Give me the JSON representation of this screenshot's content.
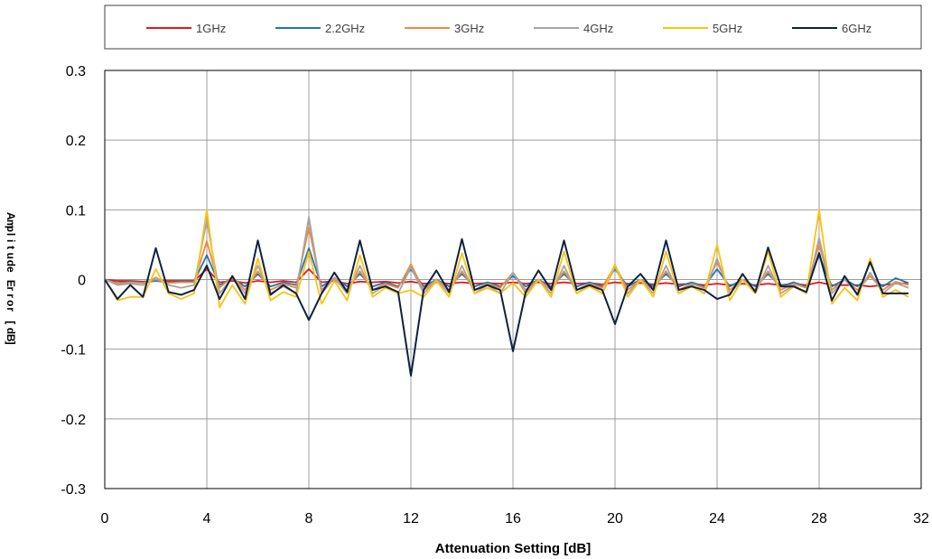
{
  "chart_data": {
    "type": "line",
    "title": "",
    "xlabel": "Attenuation Setting [dB]",
    "ylabel": "Amplitude Error [dB]",
    "xlim": [
      0,
      32
    ],
    "ylim": [
      -0.3,
      0.3
    ],
    "xticks": [
      0,
      4,
      8,
      12,
      16,
      20,
      24,
      28,
      32
    ],
    "yticks": [
      0.3,
      0.2,
      0.1,
      0,
      -0.1,
      -0.2,
      -0.3
    ],
    "ytick_labels": [
      "0.3",
      "0.2",
      "0.1",
      "0",
      "-0.1",
      "-0.2",
      "-0.3"
    ],
    "grid": true,
    "legend_position": "top",
    "x": [
      0,
      0.5,
      1,
      1.5,
      2,
      2.5,
      3,
      3.5,
      4,
      4.5,
      5,
      5.5,
      6,
      6.5,
      7,
      7.5,
      8,
      8.5,
      9,
      9.5,
      10,
      10.5,
      11,
      11.5,
      12,
      12.5,
      13,
      13.5,
      14,
      14.5,
      15,
      15.5,
      16,
      16.5,
      17,
      17.5,
      18,
      18.5,
      19,
      19.5,
      20,
      20.5,
      21,
      21.5,
      22,
      22.5,
      23,
      23.5,
      24,
      24.5,
      25,
      25.5,
      26,
      26.5,
      27,
      27.5,
      28,
      28.5,
      29,
      29.5,
      30,
      30.5,
      31,
      31.5
    ],
    "series": [
      {
        "name": "1GHz",
        "color": "#E8161B",
        "values": [
          0,
          -0.002,
          -0.002,
          -0.003,
          -0.002,
          -0.002,
          -0.002,
          -0.002,
          0.015,
          -0.004,
          -0.002,
          -0.005,
          -0.002,
          -0.004,
          -0.002,
          -0.004,
          0.015,
          -0.004,
          -0.002,
          -0.006,
          -0.003,
          -0.004,
          -0.003,
          -0.005,
          -0.003,
          -0.006,
          -0.004,
          -0.006,
          -0.004,
          -0.006,
          -0.005,
          -0.006,
          -0.004,
          -0.006,
          -0.004,
          -0.006,
          -0.004,
          -0.006,
          -0.005,
          -0.007,
          -0.004,
          -0.006,
          -0.005,
          -0.007,
          -0.005,
          -0.007,
          -0.006,
          -0.008,
          -0.006,
          -0.008,
          -0.006,
          -0.008,
          -0.006,
          -0.008,
          -0.006,
          -0.008,
          -0.004,
          -0.008,
          -0.008,
          -0.008,
          -0.01,
          -0.008,
          -0.006,
          -0.005
        ]
      },
      {
        "name": "2.2GHz",
        "color": "#1F77B4",
        "values": [
          0,
          -0.005,
          -0.003,
          -0.004,
          -0.002,
          -0.004,
          -0.003,
          -0.003,
          0.035,
          -0.008,
          0.002,
          -0.01,
          0.008,
          -0.01,
          -0.004,
          -0.008,
          0.045,
          -0.01,
          0.002,
          -0.01,
          0.008,
          -0.01,
          -0.004,
          -0.01,
          0.015,
          -0.01,
          0,
          -0.01,
          0.008,
          -0.01,
          -0.004,
          -0.01,
          0.005,
          -0.01,
          0,
          -0.01,
          0.008,
          -0.01,
          -0.004,
          -0.01,
          0.015,
          -0.01,
          0,
          -0.01,
          0.008,
          -0.01,
          -0.004,
          -0.01,
          0.015,
          -0.01,
          0,
          -0.01,
          0.008,
          -0.01,
          -0.004,
          -0.01,
          0.035,
          -0.01,
          0,
          -0.01,
          0.005,
          -0.01,
          0.002,
          -0.005
        ]
      },
      {
        "name": "3GHz",
        "color": "#ED8B3F",
        "values": [
          0,
          -0.006,
          -0.004,
          -0.005,
          0,
          -0.005,
          -0.004,
          -0.004,
          0.055,
          -0.012,
          0.004,
          -0.015,
          0.012,
          -0.015,
          -0.006,
          -0.012,
          0.075,
          -0.015,
          0.003,
          -0.015,
          0.012,
          -0.015,
          -0.006,
          -0.012,
          0.022,
          -0.015,
          0,
          -0.015,
          0.012,
          -0.015,
          -0.006,
          -0.012,
          0.01,
          -0.015,
          0,
          -0.015,
          0.012,
          -0.015,
          -0.006,
          -0.012,
          0.02,
          -0.015,
          0,
          -0.015,
          0.012,
          -0.015,
          -0.006,
          -0.012,
          0.025,
          -0.015,
          0,
          -0.015,
          0.012,
          -0.015,
          -0.006,
          -0.012,
          0.05,
          -0.015,
          0,
          -0.015,
          0.005,
          -0.015,
          -0.003,
          -0.008
        ]
      },
      {
        "name": "4GHz",
        "color": "#A5A5A5",
        "values": [
          0,
          -0.008,
          -0.006,
          -0.008,
          0.003,
          -0.008,
          -0.012,
          -0.008,
          0.085,
          -0.02,
          0.003,
          -0.02,
          0.02,
          -0.02,
          -0.01,
          -0.02,
          0.09,
          -0.02,
          0.002,
          -0.02,
          0.02,
          -0.02,
          -0.008,
          -0.02,
          0.018,
          -0.02,
          0,
          -0.02,
          0.02,
          -0.02,
          -0.008,
          -0.02,
          0.01,
          -0.02,
          0,
          -0.02,
          0.02,
          -0.02,
          -0.008,
          -0.02,
          0.018,
          -0.02,
          0,
          -0.02,
          0.02,
          -0.02,
          -0.008,
          -0.02,
          0.03,
          -0.02,
          0,
          -0.02,
          0.02,
          -0.02,
          -0.008,
          -0.02,
          0.06,
          -0.02,
          0,
          -0.02,
          0.01,
          -0.02,
          -0.005,
          -0.012
        ]
      },
      {
        "name": "5GHz",
        "color": "#FFC20E",
        "values": [
          0,
          -0.03,
          -0.025,
          -0.025,
          0.015,
          -0.02,
          -0.028,
          -0.02,
          0.1,
          -0.04,
          -0.008,
          -0.035,
          0.03,
          -0.03,
          -0.018,
          -0.025,
          0.04,
          -0.035,
          -0.002,
          -0.03,
          0.035,
          -0.025,
          -0.012,
          -0.02,
          -0.015,
          -0.025,
          -0.002,
          -0.025,
          0.038,
          -0.02,
          -0.012,
          -0.02,
          -0.005,
          -0.025,
          0,
          -0.025,
          0.04,
          -0.02,
          -0.01,
          -0.02,
          0.022,
          -0.025,
          0,
          -0.025,
          0.04,
          -0.02,
          -0.01,
          -0.02,
          0.05,
          -0.03,
          0,
          -0.02,
          0.04,
          -0.025,
          -0.01,
          -0.02,
          0.1,
          -0.035,
          -0.012,
          -0.03,
          0.03,
          -0.025,
          -0.015,
          -0.025
        ]
      },
      {
        "name": "6GHz",
        "color": "#0D2240",
        "values": [
          0,
          -0.028,
          -0.008,
          -0.025,
          0.045,
          -0.018,
          -0.022,
          -0.015,
          0.02,
          -0.028,
          0.005,
          -0.028,
          0.056,
          -0.022,
          -0.008,
          -0.02,
          -0.058,
          -0.02,
          0.01,
          -0.018,
          0.056,
          -0.015,
          -0.01,
          -0.018,
          -0.138,
          -0.015,
          0.013,
          -0.018,
          0.058,
          -0.015,
          -0.008,
          -0.015,
          -0.103,
          -0.018,
          0.013,
          -0.015,
          0.056,
          -0.015,
          -0.008,
          -0.015,
          -0.064,
          -0.01,
          0.008,
          -0.015,
          0.056,
          -0.015,
          -0.01,
          -0.015,
          -0.028,
          -0.022,
          0.008,
          -0.018,
          0.046,
          -0.01,
          -0.01,
          -0.018,
          0.038,
          -0.03,
          0.005,
          -0.022,
          0.025,
          -0.02,
          -0.02,
          -0.02
        ]
      }
    ]
  }
}
